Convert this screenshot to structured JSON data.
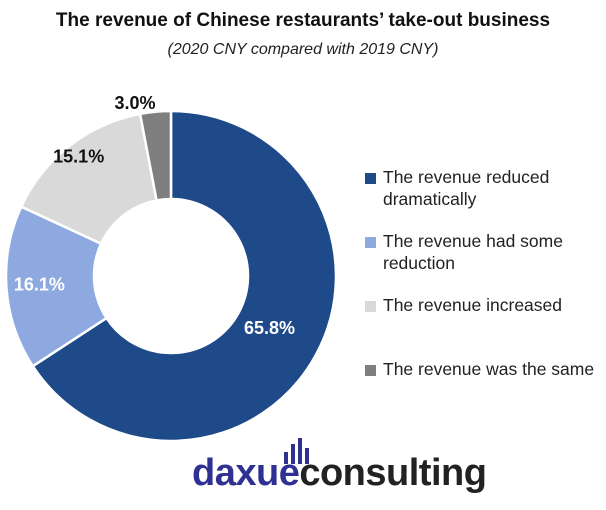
{
  "chart_data": {
    "type": "pie",
    "title": "The revenue of Chinese restaurants’ take-out business",
    "subtitle": "(2020 CNY compared with 2019 CNY)",
    "categories": [
      "The revenue reduced dramatically",
      "The revenue had some reduction",
      "The revenue increased",
      "The revenue was the same"
    ],
    "values": [
      65.8,
      16.1,
      15.1,
      3.0
    ],
    "labels": [
      "65.8%",
      "16.1%",
      "15.1%",
      "3.0%"
    ],
    "colors": [
      "#1f4a8a",
      "#8ea9e0",
      "#d9d9d9",
      "#7f7f7f"
    ],
    "label_colors": [
      "#ffffff",
      "#ffffff",
      "#111111",
      "#111111"
    ],
    "donut": true,
    "legend_position": "right"
  },
  "branding": {
    "logo_part1": "daxue",
    "logo_part2": "consulting"
  }
}
